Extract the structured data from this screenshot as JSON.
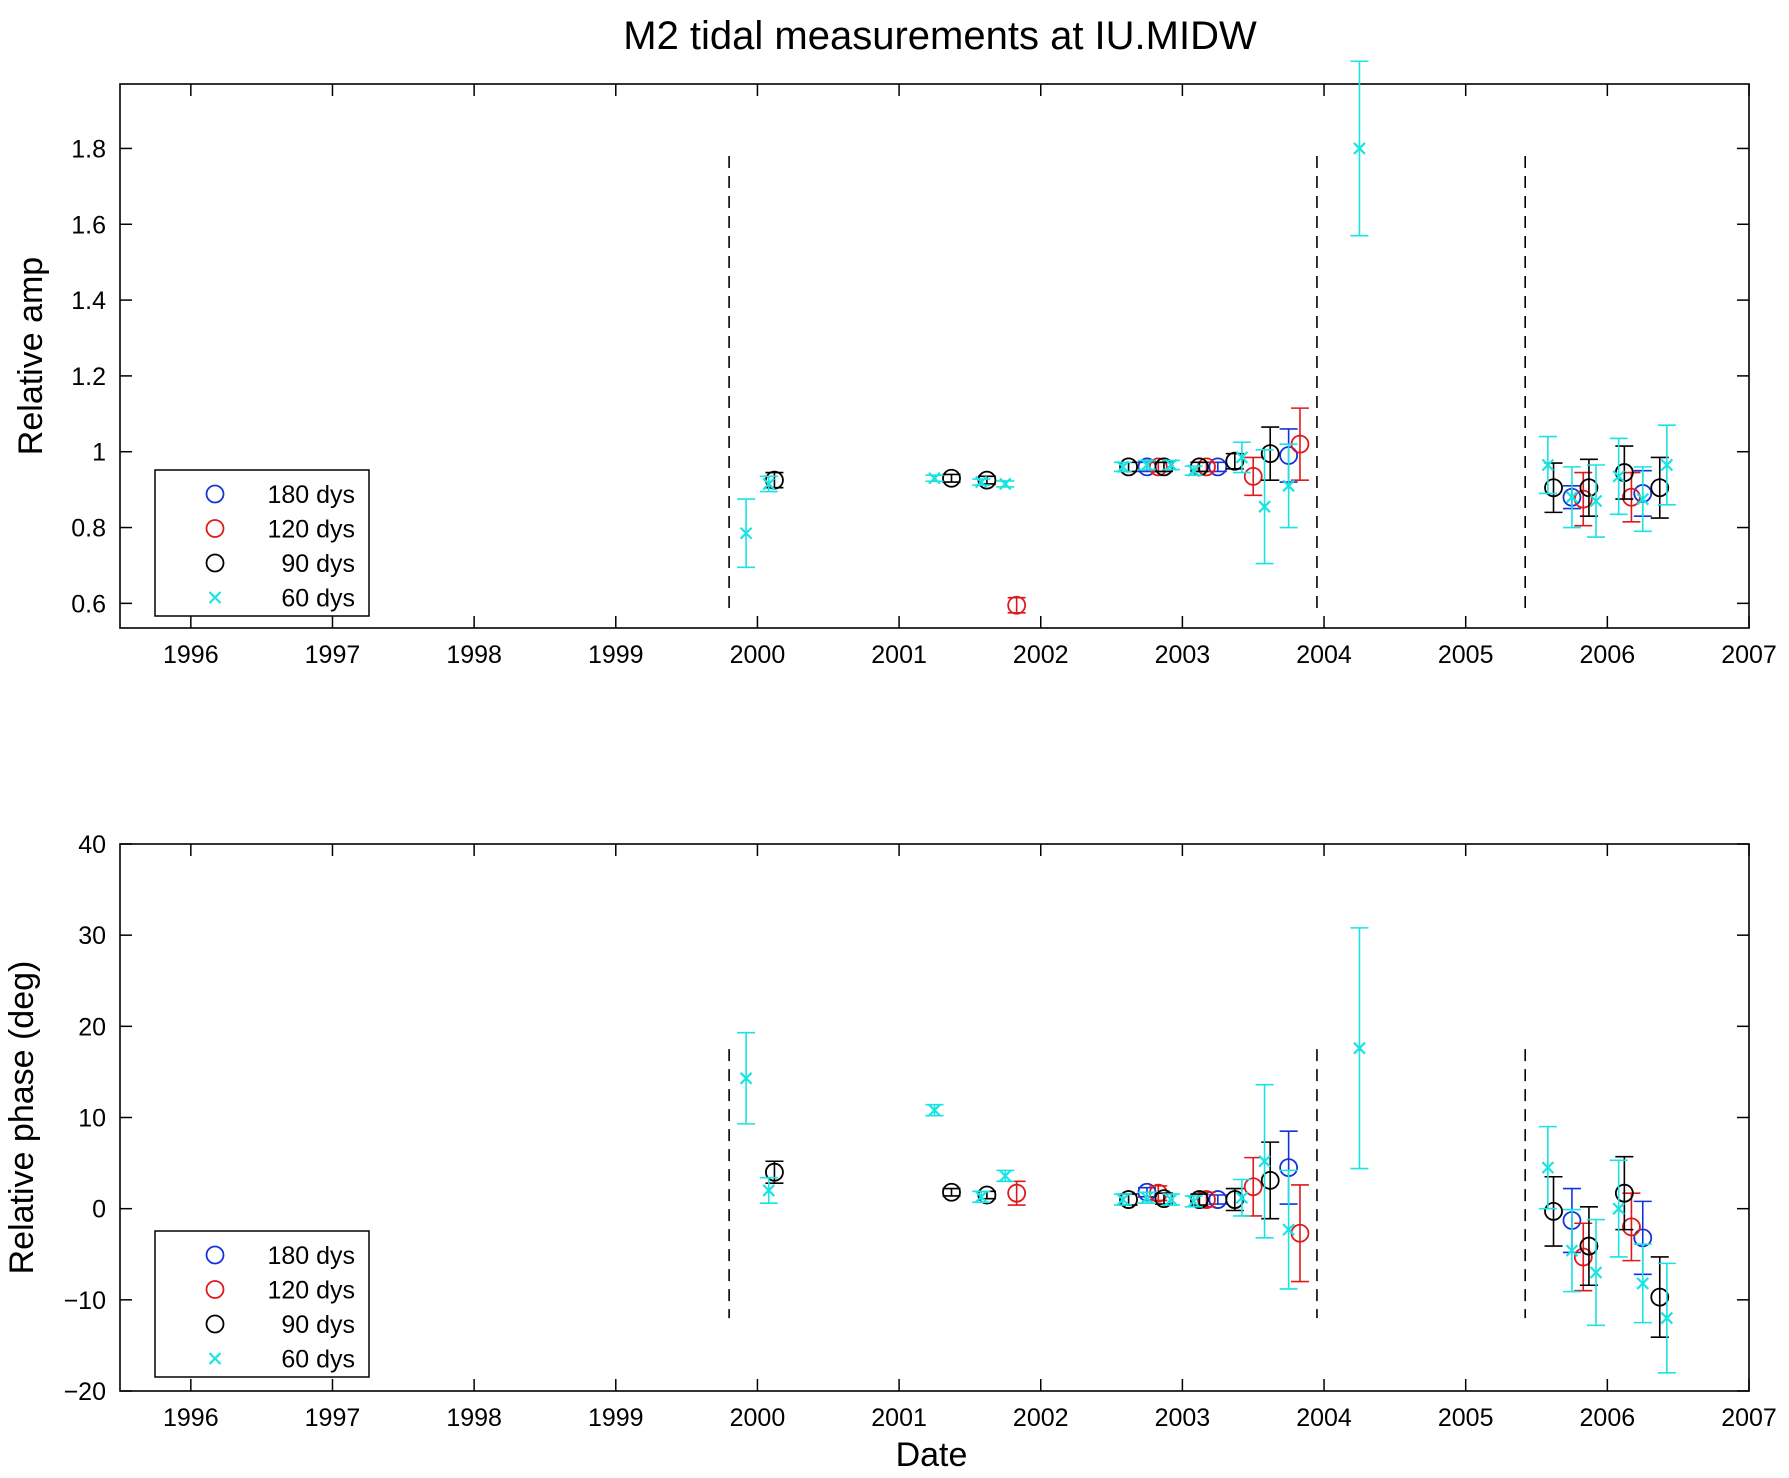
{
  "title": "M2 tidal measurements at IU.MIDW",
  "colors": {
    "180 dys": "#1533d6",
    "120 dys": "#e01a1a",
    "90 dys": "#000000",
    "60 dys": "#19e3e3"
  },
  "chart_data": [
    {
      "type": "scatter",
      "ylabel": "Relative amp",
      "xlabel": "",
      "xlim": [
        1995.5,
        2007
      ],
      "ylim": [
        0.535,
        1.97
      ],
      "x_ticks": [
        1996,
        1997,
        1998,
        1999,
        2000,
        2001,
        2002,
        2003,
        2004,
        2005,
        2006,
        2007
      ],
      "y_ticks": [
        0.6,
        0.8,
        1,
        1.2,
        1.4,
        1.6,
        1.8
      ],
      "y_tick_labels": [
        "0.6",
        "0.8",
        "1",
        "1.2",
        "1.4",
        "1.6",
        "1.8"
      ],
      "breaks": [
        1999.8,
        2003.95,
        2005.42
      ],
      "break_range": [
        0.58,
        1.78
      ],
      "legend": {
        "position": "bottom-left",
        "entries": [
          "180 dys",
          "120 dys",
          "90 dys",
          "60 dys"
        ]
      },
      "series": [
        {
          "name": "180 dys",
          "marker": "circle",
          "points": [
            {
              "x": 2002.75,
              "y": 0.96,
              "err": 0.012
            },
            {
              "x": 2003.25,
              "y": 0.96,
              "err": 0.012
            },
            {
              "x": 2003.75,
              "y": 0.99,
              "err": 0.07
            },
            {
              "x": 2005.75,
              "y": 0.88,
              "err": 0.03
            },
            {
              "x": 2006.25,
              "y": 0.89,
              "err": 0.06
            }
          ]
        },
        {
          "name": "120 dys",
          "marker": "circle",
          "points": [
            {
              "x": 2001.83,
              "y": 0.595,
              "err": 0.02
            },
            {
              "x": 2002.83,
              "y": 0.96,
              "err": 0.012
            },
            {
              "x": 2003.17,
              "y": 0.96,
              "err": 0.012
            },
            {
              "x": 2003.5,
              "y": 0.935,
              "err": 0.05
            },
            {
              "x": 2003.83,
              "y": 1.02,
              "err": 0.095
            },
            {
              "x": 2005.83,
              "y": 0.875,
              "err": 0.07
            },
            {
              "x": 2006.17,
              "y": 0.88,
              "err": 0.065
            }
          ]
        },
        {
          "name": "90 dys",
          "marker": "circle",
          "points": [
            {
              "x": 2000.12,
              "y": 0.925,
              "err": 0.02
            },
            {
              "x": 2001.37,
              "y": 0.93,
              "err": 0.01
            },
            {
              "x": 2001.62,
              "y": 0.925,
              "err": 0.01
            },
            {
              "x": 2002.62,
              "y": 0.96,
              "err": 0.012
            },
            {
              "x": 2002.87,
              "y": 0.96,
              "err": 0.012
            },
            {
              "x": 2003.12,
              "y": 0.96,
              "err": 0.012
            },
            {
              "x": 2003.37,
              "y": 0.975,
              "err": 0.02
            },
            {
              "x": 2003.62,
              "y": 0.995,
              "err": 0.07
            },
            {
              "x": 2005.62,
              "y": 0.905,
              "err": 0.065
            },
            {
              "x": 2005.87,
              "y": 0.905,
              "err": 0.075
            },
            {
              "x": 2006.12,
              "y": 0.945,
              "err": 0.07
            },
            {
              "x": 2006.37,
              "y": 0.905,
              "err": 0.08
            }
          ]
        },
        {
          "name": "60 dys",
          "marker": "x",
          "points": [
            {
              "x": 1999.92,
              "y": 0.785,
              "err": 0.09
            },
            {
              "x": 2000.08,
              "y": 0.915,
              "err": 0.02
            },
            {
              "x": 2001.25,
              "y": 0.93,
              "err": 0.008
            },
            {
              "x": 2001.58,
              "y": 0.92,
              "err": 0.008
            },
            {
              "x": 2001.75,
              "y": 0.915,
              "err": 0.008
            },
            {
              "x": 2002.58,
              "y": 0.96,
              "err": 0.012
            },
            {
              "x": 2002.75,
              "y": 0.965,
              "err": 0.012
            },
            {
              "x": 2002.92,
              "y": 0.965,
              "err": 0.012
            },
            {
              "x": 2003.08,
              "y": 0.95,
              "err": 0.012
            },
            {
              "x": 2003.42,
              "y": 0.985,
              "err": 0.04
            },
            {
              "x": 2003.58,
              "y": 0.855,
              "err": 0.15
            },
            {
              "x": 2003.75,
              "y": 0.91,
              "err": 0.11
            },
            {
              "x": 2004.25,
              "y": 1.8,
              "err": 0.23
            },
            {
              "x": 2005.58,
              "y": 0.965,
              "err": 0.075
            },
            {
              "x": 2005.75,
              "y": 0.88,
              "err": 0.08
            },
            {
              "x": 2005.92,
              "y": 0.87,
              "err": 0.095
            },
            {
              "x": 2006.08,
              "y": 0.935,
              "err": 0.1
            },
            {
              "x": 2006.25,
              "y": 0.875,
              "err": 0.085
            },
            {
              "x": 2006.42,
              "y": 0.965,
              "err": 0.105
            }
          ]
        }
      ]
    },
    {
      "type": "scatter",
      "ylabel": "Relative phase (deg)",
      "xlabel": "Date",
      "xlim": [
        1995.5,
        2007
      ],
      "ylim": [
        -20,
        40
      ],
      "x_ticks": [
        1996,
        1997,
        1998,
        1999,
        2000,
        2001,
        2002,
        2003,
        2004,
        2005,
        2006,
        2007
      ],
      "y_ticks": [
        -20,
        -10,
        0,
        10,
        20,
        30,
        40
      ],
      "y_tick_labels": [
        "−20",
        "−10",
        "0",
        "10",
        "20",
        "30",
        "40"
      ],
      "breaks": [
        1999.8,
        2003.95,
        2005.42
      ],
      "break_range": [
        -12,
        17.5
      ],
      "legend": {
        "position": "bottom-left",
        "entries": [
          "180 dys",
          "120 dys",
          "90 dys",
          "60 dys"
        ]
      },
      "series": [
        {
          "name": "180 dys",
          "marker": "circle",
          "points": [
            {
              "x": 2002.75,
              "y": 1.8,
              "err": 0.5
            },
            {
              "x": 2003.25,
              "y": 1.0,
              "err": 0.5
            },
            {
              "x": 2003.75,
              "y": 4.5,
              "err": 4.0
            },
            {
              "x": 2005.75,
              "y": -1.3,
              "err": 3.5
            },
            {
              "x": 2006.25,
              "y": -3.2,
              "err": 4.0
            }
          ]
        },
        {
          "name": "120 dys",
          "marker": "circle",
          "points": [
            {
              "x": 2001.83,
              "y": 1.7,
              "err": 1.3
            },
            {
              "x": 2002.83,
              "y": 1.7,
              "err": 0.8
            },
            {
              "x": 2003.17,
              "y": 1.0,
              "err": 0.8
            },
            {
              "x": 2003.5,
              "y": 2.4,
              "err": 3.2
            },
            {
              "x": 2003.83,
              "y": -2.7,
              "err": 5.3
            },
            {
              "x": 2005.83,
              "y": -5.3,
              "err": 3.7
            },
            {
              "x": 2006.17,
              "y": -2.0,
              "err": 3.7
            }
          ]
        },
        {
          "name": "90 dys",
          "marker": "circle",
          "points": [
            {
              "x": 2000.12,
              "y": 4.0,
              "err": 1.2
            },
            {
              "x": 2001.37,
              "y": 1.8,
              "err": 0.4
            },
            {
              "x": 2001.62,
              "y": 1.5,
              "err": 0.4
            },
            {
              "x": 2002.62,
              "y": 1.0,
              "err": 0.6
            },
            {
              "x": 2002.87,
              "y": 1.1,
              "err": 0.6
            },
            {
              "x": 2003.12,
              "y": 1.0,
              "err": 0.6
            },
            {
              "x": 2003.37,
              "y": 1.0,
              "err": 1.2
            },
            {
              "x": 2003.62,
              "y": 3.1,
              "err": 4.2
            },
            {
              "x": 2005.62,
              "y": -0.3,
              "err": 3.8
            },
            {
              "x": 2005.87,
              "y": -4.1,
              "err": 4.3
            },
            {
              "x": 2006.12,
              "y": 1.7,
              "err": 4.0
            },
            {
              "x": 2006.37,
              "y": -9.7,
              "err": 4.4
            }
          ]
        },
        {
          "name": "60 dys",
          "marker": "x",
          "points": [
            {
              "x": 1999.92,
              "y": 14.3,
              "err": 5.0
            },
            {
              "x": 2000.08,
              "y": 2.0,
              "err": 1.4
            },
            {
              "x": 2001.25,
              "y": 10.8,
              "err": 0.6
            },
            {
              "x": 2001.58,
              "y": 1.3,
              "err": 0.6
            },
            {
              "x": 2001.75,
              "y": 3.6,
              "err": 0.6
            },
            {
              "x": 2002.58,
              "y": 1.0,
              "err": 0.6
            },
            {
              "x": 2002.75,
              "y": 1.2,
              "err": 0.6
            },
            {
              "x": 2002.92,
              "y": 1.0,
              "err": 0.6
            },
            {
              "x": 2003.08,
              "y": 0.8,
              "err": 0.6
            },
            {
              "x": 2003.42,
              "y": 1.2,
              "err": 2.0
            },
            {
              "x": 2003.58,
              "y": 5.2,
              "err": 8.4
            },
            {
              "x": 2003.75,
              "y": -2.3,
              "err": 6.5
            },
            {
              "x": 2004.25,
              "y": 17.6,
              "err": 13.2
            },
            {
              "x": 2005.58,
              "y": 4.5,
              "err": 4.5
            },
            {
              "x": 2005.75,
              "y": -4.6,
              "err": 4.5
            },
            {
              "x": 2005.92,
              "y": -7.0,
              "err": 5.8
            },
            {
              "x": 2006.08,
              "y": 0.0,
              "err": 5.3
            },
            {
              "x": 2006.25,
              "y": -8.2,
              "err": 4.3
            },
            {
              "x": 2006.42,
              "y": -12.0,
              "err": 6.0
            }
          ]
        }
      ]
    }
  ]
}
